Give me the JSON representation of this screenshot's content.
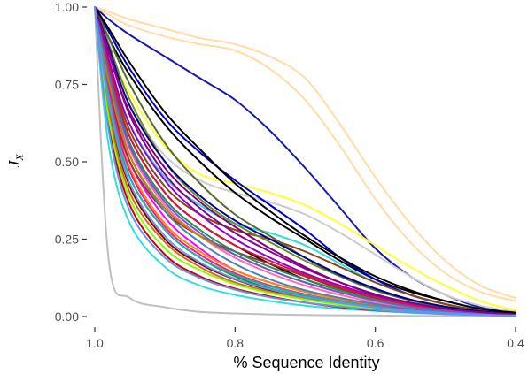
{
  "chart_data": {
    "type": "line",
    "title": "",
    "xlabel": "% Sequence Identity",
    "ylabel": "J",
    "ylabel_sub": "X",
    "x_reversed": true,
    "xlim": [
      1.0,
      0.4
    ],
    "ylim": [
      0,
      1
    ],
    "x_ticks": [
      1.0,
      0.8,
      0.6,
      0.4
    ],
    "x_tick_labels": [
      "1.0",
      "0.8",
      "0.6",
      "0.4"
    ],
    "y_ticks": [
      0,
      0.25,
      0.5,
      0.75,
      1.0
    ],
    "y_tick_labels": [
      "0.00",
      "0.25",
      "0.50",
      "0.75",
      "1.00"
    ],
    "grid": false,
    "legend": "none",
    "x": [
      1.0,
      0.98,
      0.95,
      0.9,
      0.85,
      0.8,
      0.75,
      0.7,
      0.65,
      0.6,
      0.55,
      0.5,
      0.45,
      0.4
    ],
    "series": [
      {
        "color": "#c0c0c0",
        "values": [
          1.0,
          0.18,
          0.06,
          0.03,
          0.015,
          0.01,
          0.007,
          0.005,
          0.004,
          0.003,
          0.002,
          0.002,
          0.001,
          0.001
        ]
      },
      {
        "color": "#ffdca8",
        "values": [
          1.0,
          0.985,
          0.96,
          0.93,
          0.9,
          0.88,
          0.84,
          0.77,
          0.62,
          0.45,
          0.3,
          0.18,
          0.1,
          0.06
        ]
      },
      {
        "color": "#ffdca8",
        "values": [
          1.0,
          0.975,
          0.94,
          0.905,
          0.88,
          0.86,
          0.8,
          0.7,
          0.55,
          0.38,
          0.24,
          0.14,
          0.08,
          0.05
        ]
      },
      {
        "color": "#1a1aaa",
        "values": [
          1.0,
          0.96,
          0.91,
          0.84,
          0.77,
          0.7,
          0.6,
          0.48,
          0.35,
          0.22,
          0.13,
          0.07,
          0.03,
          0.015
        ]
      },
      {
        "color": "#ffff33",
        "values": [
          1.0,
          0.87,
          0.72,
          0.55,
          0.46,
          0.43,
          0.4,
          0.36,
          0.3,
          0.23,
          0.16,
          0.1,
          0.05,
          0.02
        ]
      },
      {
        "color": "#cccccc",
        "values": [
          1.0,
          0.85,
          0.68,
          0.52,
          0.44,
          0.4,
          0.37,
          0.33,
          0.27,
          0.2,
          0.13,
          0.07,
          0.035,
          0.015
        ]
      },
      {
        "color": "#33dddd",
        "values": [
          1.0,
          0.55,
          0.3,
          0.16,
          0.1,
          0.07,
          0.05,
          0.035,
          0.025,
          0.018,
          0.012,
          0.008,
          0.005,
          0.003
        ]
      },
      {
        "color": "#33dddd",
        "values": [
          1.0,
          0.82,
          0.62,
          0.45,
          0.36,
          0.3,
          0.27,
          0.23,
          0.17,
          0.11,
          0.07,
          0.04,
          0.02,
          0.01
        ]
      },
      {
        "color": "#000000",
        "values": [
          1.0,
          0.9,
          0.78,
          0.62,
          0.5,
          0.4,
          0.32,
          0.25,
          0.18,
          0.12,
          0.08,
          0.05,
          0.025,
          0.012
        ]
      },
      {
        "color": "#000000",
        "values": [
          1.0,
          0.8,
          0.58,
          0.4,
          0.3,
          0.23,
          0.17,
          0.12,
          0.085,
          0.06,
          0.04,
          0.025,
          0.015,
          0.008
        ]
      },
      {
        "color": "#0000cc",
        "values": [
          1.0,
          0.92,
          0.8,
          0.64,
          0.53,
          0.44,
          0.36,
          0.28,
          0.19,
          0.12,
          0.07,
          0.04,
          0.02,
          0.01
        ]
      },
      {
        "color": "#ff00ff",
        "values": [
          1.0,
          0.75,
          0.5,
          0.32,
          0.22,
          0.15,
          0.11,
          0.08,
          0.055,
          0.035,
          0.02,
          0.012,
          0.007,
          0.004
        ]
      },
      {
        "color": "#8b4513",
        "values": [
          1.0,
          0.82,
          0.6,
          0.42,
          0.33,
          0.28,
          0.25,
          0.21,
          0.16,
          0.11,
          0.07,
          0.04,
          0.02,
          0.01
        ]
      },
      {
        "color": "#228b22",
        "values": [
          1.0,
          0.7,
          0.45,
          0.28,
          0.19,
          0.13,
          0.09,
          0.065,
          0.045,
          0.03,
          0.02,
          0.012,
          0.007,
          0.004
        ]
      },
      {
        "color": "#cc0000",
        "values": [
          1.0,
          0.62,
          0.36,
          0.2,
          0.13,
          0.09,
          0.065,
          0.045,
          0.03,
          0.02,
          0.014,
          0.009,
          0.005,
          0.003
        ]
      },
      {
        "color": "#ff8c00",
        "values": [
          1.0,
          0.72,
          0.48,
          0.3,
          0.21,
          0.15,
          0.11,
          0.08,
          0.055,
          0.035,
          0.022,
          0.013,
          0.008,
          0.004
        ]
      },
      {
        "color": "#800080",
        "values": [
          1.0,
          0.85,
          0.66,
          0.48,
          0.37,
          0.29,
          0.22,
          0.16,
          0.11,
          0.07,
          0.045,
          0.025,
          0.013,
          0.007
        ]
      },
      {
        "color": "#ff69b4",
        "values": [
          1.0,
          0.78,
          0.54,
          0.36,
          0.26,
          0.19,
          0.14,
          0.1,
          0.07,
          0.045,
          0.028,
          0.017,
          0.009,
          0.005
        ]
      },
      {
        "color": "#a52a2a",
        "values": [
          1.0,
          0.74,
          0.5,
          0.34,
          0.26,
          0.21,
          0.17,
          0.13,
          0.09,
          0.06,
          0.038,
          0.022,
          0.012,
          0.006
        ]
      },
      {
        "color": "#2e8b57",
        "values": [
          1.0,
          0.8,
          0.56,
          0.38,
          0.28,
          0.21,
          0.16,
          0.12,
          0.085,
          0.055,
          0.034,
          0.02,
          0.011,
          0.006
        ]
      },
      {
        "color": "#8b0000",
        "values": [
          1.0,
          0.68,
          0.42,
          0.25,
          0.17,
          0.12,
          0.085,
          0.06,
          0.042,
          0.028,
          0.018,
          0.011,
          0.006,
          0.003
        ]
      },
      {
        "color": "#6b8e23",
        "values": [
          1.0,
          0.88,
          0.7,
          0.5,
          0.38,
          0.3,
          0.24,
          0.18,
          0.13,
          0.085,
          0.055,
          0.032,
          0.017,
          0.009
        ]
      },
      {
        "color": "#4682b4",
        "values": [
          1.0,
          0.77,
          0.52,
          0.34,
          0.24,
          0.17,
          0.12,
          0.085,
          0.06,
          0.04,
          0.025,
          0.015,
          0.008,
          0.004
        ]
      },
      {
        "color": "#d2691e",
        "values": [
          1.0,
          0.66,
          0.4,
          0.24,
          0.16,
          0.11,
          0.08,
          0.058,
          0.04,
          0.027,
          0.017,
          0.01,
          0.006,
          0.003
        ]
      },
      {
        "color": "#9400d3",
        "values": [
          1.0,
          0.83,
          0.62,
          0.44,
          0.33,
          0.25,
          0.19,
          0.14,
          0.1,
          0.065,
          0.04,
          0.023,
          0.012,
          0.006
        ]
      },
      {
        "color": "#556b2f",
        "values": [
          1.0,
          0.9,
          0.75,
          0.56,
          0.43,
          0.33,
          0.26,
          0.19,
          0.13,
          0.085,
          0.052,
          0.03,
          0.016,
          0.008
        ]
      },
      {
        "color": "#ff1493",
        "values": [
          1.0,
          0.73,
          0.47,
          0.29,
          0.2,
          0.14,
          0.1,
          0.072,
          0.05,
          0.033,
          0.021,
          0.012,
          0.007,
          0.003
        ]
      },
      {
        "color": "#00008b",
        "values": [
          1.0,
          0.87,
          0.68,
          0.5,
          0.39,
          0.31,
          0.25,
          0.19,
          0.135,
          0.09,
          0.055,
          0.032,
          0.017,
          0.009
        ]
      },
      {
        "color": "#b8860b",
        "values": [
          1.0,
          0.76,
          0.52,
          0.35,
          0.26,
          0.2,
          0.15,
          0.11,
          0.078,
          0.051,
          0.032,
          0.019,
          0.01,
          0.005
        ]
      },
      {
        "color": "#20b2aa",
        "values": [
          1.0,
          0.71,
          0.45,
          0.28,
          0.19,
          0.135,
          0.097,
          0.07,
          0.049,
          0.032,
          0.02,
          0.012,
          0.007,
          0.003
        ]
      },
      {
        "color": "#dc143c",
        "values": [
          1.0,
          0.81,
          0.58,
          0.4,
          0.3,
          0.23,
          0.18,
          0.135,
          0.095,
          0.062,
          0.038,
          0.022,
          0.012,
          0.006
        ]
      },
      {
        "color": "#7fff00",
        "values": [
          1.0,
          0.64,
          0.38,
          0.22,
          0.15,
          0.105,
          0.076,
          0.055,
          0.038,
          0.025,
          0.016,
          0.01,
          0.005,
          0.003
        ]
      },
      {
        "color": "#000000",
        "values": [
          1.0,
          0.93,
          0.82,
          0.66,
          0.54,
          0.43,
          0.34,
          0.26,
          0.19,
          0.13,
          0.085,
          0.05,
          0.025,
          0.012
        ]
      },
      {
        "color": "#6a5acd",
        "values": [
          1.0,
          0.79,
          0.55,
          0.37,
          0.27,
          0.2,
          0.15,
          0.11,
          0.078,
          0.051,
          0.032,
          0.019,
          0.01,
          0.005
        ]
      },
      {
        "color": "#8b008b",
        "values": [
          1.0,
          0.86,
          0.65,
          0.46,
          0.35,
          0.27,
          0.21,
          0.155,
          0.11,
          0.072,
          0.045,
          0.026,
          0.014,
          0.007
        ]
      },
      {
        "color": "#6495ed",
        "values": [
          1.0,
          0.6,
          0.34,
          0.19,
          0.125,
          0.087,
          0.062,
          0.045,
          0.032,
          0.021,
          0.013,
          0.008,
          0.005,
          0.002
        ]
      },
      {
        "color": "#6495ed",
        "values": [
          1.0,
          0.69,
          0.43,
          0.26,
          0.175,
          0.122,
          0.088,
          0.063,
          0.044,
          0.029,
          0.018,
          0.011,
          0.006,
          0.003
        ]
      }
    ]
  }
}
